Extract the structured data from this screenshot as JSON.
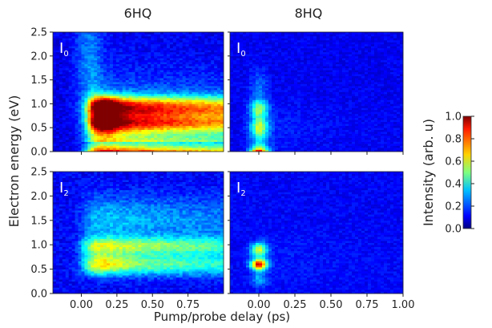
{
  "chart_data": {
    "type": "heatmap",
    "column_titles": [
      "6HQ",
      "8HQ"
    ],
    "row_labels": [
      "I0",
      "I2"
    ],
    "panel_labels": [
      {
        "main": "I",
        "sub": "0"
      },
      {
        "main": "I",
        "sub": "0"
      },
      {
        "main": "I",
        "sub": "2"
      },
      {
        "main": "I",
        "sub": "2"
      }
    ],
    "xlabel": "Pump/probe delay (ps)",
    "ylabel": "Electron energy (eV)",
    "colorbar": {
      "label": "Intensity (arb. u)",
      "range": [
        0.0,
        1.0
      ],
      "ticks": [
        "0.0",
        "0.2",
        "0.4",
        "0.6",
        "0.8",
        "1.0"
      ],
      "colormap": "jet"
    },
    "y_range": [
      0.0,
      2.5
    ],
    "y_ticks": [
      "0.0",
      "0.5",
      "1.0",
      "1.5",
      "2.0",
      "2.5"
    ],
    "x_range_left": [
      -0.2,
      1.0
    ],
    "x_ticks_left": [
      "0.00",
      "0.25",
      "0.50",
      "0.75"
    ],
    "x_range_right": [
      -0.2,
      1.0
    ],
    "x_ticks_right": [
      "0.00",
      "0.25",
      "0.50",
      "0.75",
      "1.00"
    ],
    "panels": [
      {
        "molecule": "6HQ",
        "order": "I0",
        "features": [
          {
            "energy": 0.05,
            "delay_peak": 0.2,
            "intensity": 1.0
          },
          {
            "energy": 0.6,
            "delay_peak": 0.15,
            "intensity": 0.9
          },
          {
            "energy": 1.0,
            "delay_peak": 0.2,
            "intensity": 0.85
          },
          {
            "energy": 1.0,
            "delay_peak": 0.9,
            "intensity": 0.55
          }
        ]
      },
      {
        "molecule": "8HQ",
        "order": "I0",
        "features": [
          {
            "energy": 0.05,
            "delay_peak": 0.0,
            "intensity": 1.0
          },
          {
            "energy": 0.5,
            "delay_peak": 0.0,
            "intensity": 0.75
          },
          {
            "energy": 0.9,
            "delay_peak": 0.0,
            "intensity": 0.6
          }
        ]
      },
      {
        "molecule": "6HQ",
        "order": "I2",
        "features": [
          {
            "energy": 0.6,
            "delay_peak": 0.1,
            "intensity": 0.7
          },
          {
            "energy": 0.95,
            "delay_peak": 0.3,
            "intensity": 0.6
          }
        ]
      },
      {
        "molecule": "8HQ",
        "order": "I2",
        "features": [
          {
            "energy": 0.6,
            "delay_peak": 0.0,
            "intensity": 0.95
          },
          {
            "energy": 0.9,
            "delay_peak": 0.0,
            "intensity": 0.6
          }
        ]
      }
    ]
  }
}
